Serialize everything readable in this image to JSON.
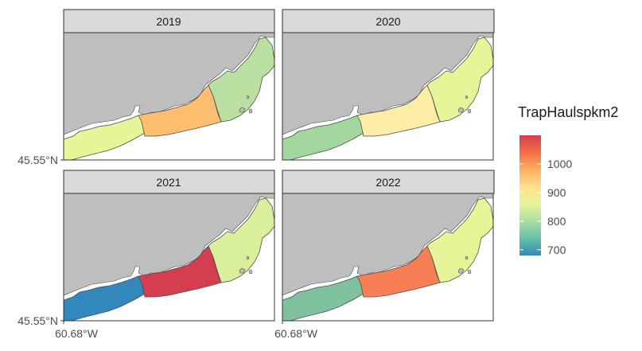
{
  "panels": [
    {
      "title": "2019",
      "regions": [
        {
          "name": "west",
          "value": 830,
          "color": "#e6f598"
        },
        {
          "name": "middle",
          "value": 975,
          "color": "#fdbf6f"
        },
        {
          "name": "east",
          "value": 785,
          "color": "#b9e0a0"
        }
      ]
    },
    {
      "title": "2020",
      "regions": [
        {
          "name": "west",
          "value": 770,
          "color": "#a4d79d"
        },
        {
          "name": "middle",
          "value": 885,
          "color": "#fdeda6"
        },
        {
          "name": "east",
          "value": 835,
          "color": "#e6f598"
        }
      ]
    },
    {
      "title": "2021",
      "regions": [
        {
          "name": "west",
          "value": 695,
          "color": "#3288bd"
        },
        {
          "name": "middle",
          "value": 1085,
          "color": "#d53e4f"
        },
        {
          "name": "east",
          "value": 820,
          "color": "#d9ef9b"
        }
      ]
    },
    {
      "title": "2022",
      "regions": [
        {
          "name": "west",
          "value": 745,
          "color": "#7fc09f"
        },
        {
          "name": "middle",
          "value": 1020,
          "color": "#f77f55"
        },
        {
          "name": "east",
          "value": 830,
          "color": "#e6f598"
        }
      ]
    }
  ],
  "axes": {
    "y_tick": "45.55°N",
    "x_tick": "60.68°W"
  },
  "legend": {
    "title": "TrapHaulspkm2",
    "ticks": [
      1000,
      900,
      800,
      700
    ],
    "range": [
      680,
      1100
    ],
    "colors": [
      "#3288bd",
      "#66c2a5",
      "#abdda4",
      "#e6f598",
      "#fee08b",
      "#fdae61",
      "#f46d43",
      "#d53e4f"
    ]
  },
  "colors": {
    "land": "#bebebe",
    "strip": "#d9d9d9",
    "panel_border": "#333333"
  }
}
